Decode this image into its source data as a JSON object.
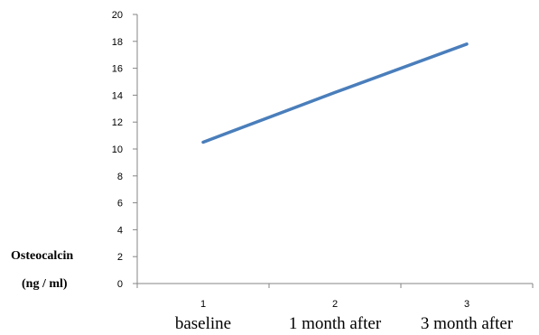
{
  "chart_data": {
    "type": "line",
    "x": [
      1,
      2,
      3
    ],
    "x_tick_labels": [
      "1",
      "2",
      "3"
    ],
    "categories": [
      "baseline",
      "1 month after",
      "3 month after"
    ],
    "series": [
      {
        "values": [
          10.5,
          14.2,
          17.8
        ],
        "color": "#4a7ebb"
      }
    ],
    "ylabel_line1": "Osteocalcin",
    "ylabel_line2": "(ng / ml)",
    "ylim": [
      0,
      20
    ],
    "y_ticks": [
      "0",
      "2",
      "4",
      "6",
      "8",
      "10",
      "12",
      "14",
      "16",
      "18",
      "20"
    ],
    "grid": false,
    "legend": "none"
  }
}
